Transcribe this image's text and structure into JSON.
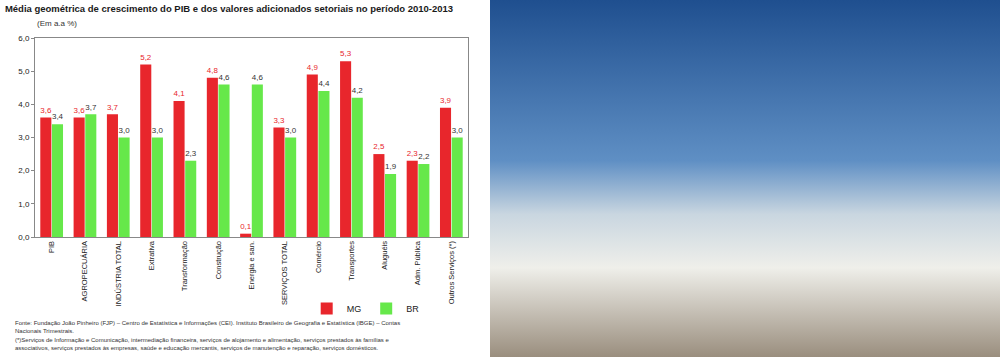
{
  "chart_data": {
    "type": "bar",
    "title": "Média geométrica de crescimento do PIB e dos valores adicionados setoriais no período 2010-2013",
    "subtitle": "(Em a.a %)",
    "categories": [
      "PIB",
      "AGROPECUÁRIA",
      "INDÚSTRIA TOTAL",
      "Extrativa",
      "Transformação",
      "Construção",
      "Energia e san.",
      "SERVIÇOS TOTAL",
      "Comércio",
      "Transportes",
      "Aluguéis",
      "Adm. Pública",
      "Outros Serviços (*)"
    ],
    "series": [
      {
        "name": "MG",
        "color": "#e8262c",
        "values": [
          3.6,
          3.6,
          3.7,
          5.2,
          4.1,
          4.8,
          0.1,
          3.3,
          4.9,
          5.3,
          2.5,
          2.3,
          3.9
        ],
        "value_labels": [
          "3,6",
          "3,6",
          "3,7",
          "5,2",
          "4,1",
          "4,8",
          "0,1",
          "3,3",
          "4,9",
          "5,3",
          "2,5",
          "2,3",
          "3,9"
        ]
      },
      {
        "name": "BR",
        "color": "#66e84a",
        "values": [
          3.4,
          3.7,
          3.0,
          3.0,
          2.3,
          4.6,
          4.6,
          3.0,
          4.4,
          4.2,
          1.9,
          2.2,
          3.0
        ],
        "value_labels": [
          "3,4",
          "3,7",
          "3,0",
          "3,0",
          "2,3",
          "4,6",
          "4,6",
          "3,0",
          "4,4",
          "4,2",
          "1,9",
          "2,2",
          "3,0"
        ]
      }
    ],
    "ylim": [
      0,
      6
    ],
    "yticks": [
      {
        "value": 0,
        "label": "0,0"
      },
      {
        "value": 1,
        "label": "1,0"
      },
      {
        "value": 2,
        "label": "2,0"
      },
      {
        "value": 3,
        "label": "3,0"
      },
      {
        "value": 4,
        "label": "4,0"
      },
      {
        "value": 5,
        "label": "5,0"
      },
      {
        "value": 6,
        "label": "6,0"
      }
    ],
    "grid": false,
    "legend": "bottom right",
    "data_labels": true,
    "annotations": [
      "Fonte: Fundação João Pinheiro (FJP) – Centro de Estatística e Informações (CEI). Instituto Brasileiro de Geografia e Estatística (IBGE) – Contas Nacionais Trimestrais.",
      "(*)Serviços de Informação e Comunicação, intermediação financeira, serviços de alojamento e alimentação, serviços prestados às famílias e associativos, serviços prestados às empresas, saúde e educação mercantis, serviços de manutenção e reparação, serviços domésticos."
    ]
  }
}
